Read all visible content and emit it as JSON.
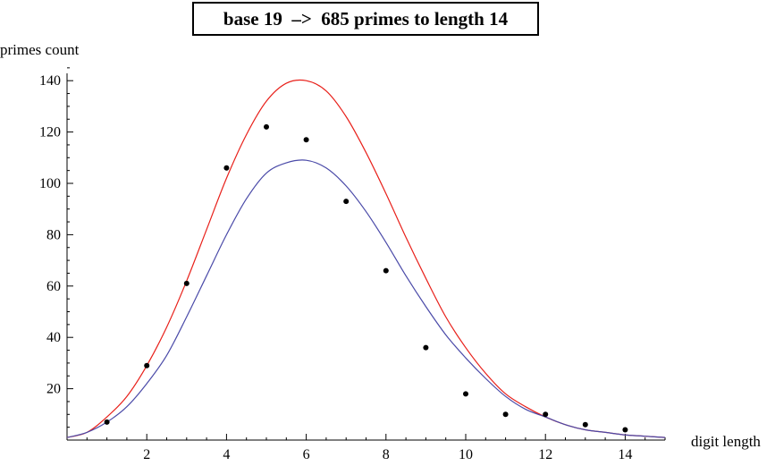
{
  "chart_data": {
    "type": "scatter",
    "title": "base 19  –>  685 primes to length 14",
    "xlabel": "digit length",
    "ylabel": "primes count",
    "xlim": [
      0,
      15
    ],
    "ylim": [
      0,
      145
    ],
    "x_ticks": [
      2,
      4,
      6,
      8,
      10,
      12,
      14
    ],
    "y_ticks": [
      20,
      40,
      60,
      80,
      100,
      120,
      140
    ],
    "x_tick_labels": [
      "2",
      "4",
      "6",
      "8",
      "10",
      "12",
      "14"
    ],
    "y_tick_labels": [
      "20",
      "40",
      "60",
      "80",
      "100",
      "120",
      "140"
    ],
    "grid": false,
    "series": [
      {
        "type": "scatter",
        "color": "#000000",
        "x": [
          1,
          2,
          3,
          4,
          5,
          6,
          7,
          8,
          9,
          10,
          11,
          12,
          13,
          14
        ],
        "y": [
          7,
          29,
          61,
          106,
          122,
          117,
          93,
          66,
          36,
          18,
          10,
          10,
          6,
          4
        ]
      },
      {
        "type": "line",
        "color": "#e8201a",
        "x": [
          0,
          0.5,
          1,
          1.5,
          2,
          2.5,
          3,
          3.5,
          4,
          4.5,
          5,
          5.5,
          6,
          6.5,
          7,
          7.5,
          8,
          8.5,
          9,
          9.5,
          10,
          10.5,
          11,
          11.5,
          12,
          12.5,
          13,
          13.5,
          14,
          14.5,
          15
        ],
        "y": [
          1,
          3,
          9,
          17,
          29,
          44,
          62,
          82,
          102,
          119,
          132,
          139,
          140,
          136,
          126,
          112,
          96,
          79,
          63,
          48,
          36,
          26,
          18,
          13,
          9,
          6,
          4,
          3,
          2,
          1.5,
          1
        ]
      },
      {
        "type": "line",
        "color": "#4a4aa8",
        "x": [
          0,
          0.5,
          1,
          1.5,
          2,
          2.5,
          3,
          3.5,
          4,
          4.5,
          5,
          5.5,
          6,
          6.5,
          7,
          7.5,
          8,
          8.5,
          9,
          9.5,
          10,
          10.5,
          11,
          11.5,
          12,
          12.5,
          13,
          13.5,
          14,
          14.5,
          15
        ],
        "y": [
          1,
          3,
          7,
          13,
          22,
          33,
          48,
          64,
          80,
          94,
          104,
          108,
          109,
          106,
          99,
          89,
          77,
          64,
          52,
          41,
          32,
          24,
          17,
          12,
          9,
          6,
          4,
          3,
          2,
          1.5,
          1
        ]
      }
    ]
  }
}
